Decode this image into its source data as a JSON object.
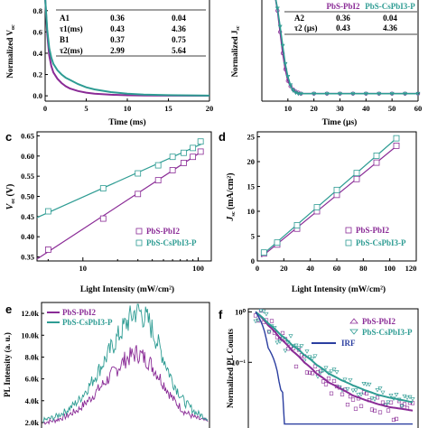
{
  "colors": {
    "pbi": "#8a2b96",
    "cspbi": "#2e9c93",
    "irf": "#2b3ea0"
  },
  "panels": {
    "a": {
      "xlabel": "Time (ms)",
      "ylabel": "Normalized V",
      "ylabel_sub": "oc",
      "table": {
        "headers": [
          "",
          "",
          ""
        ],
        "rows": [
          [
            "A1",
            "0.36",
            "0.04"
          ],
          [
            "τ1(ms)",
            "0.43",
            "4.36"
          ],
          [
            "B1",
            "0.37",
            "0.75"
          ],
          [
            "τ2(ms)",
            "2.99",
            "5.64"
          ]
        ]
      },
      "xticks": [
        "0",
        "5",
        "10",
        "15",
        "20"
      ],
      "yticks": [
        "0.0",
        "0.2",
        "0.4",
        "0.6",
        "0.8"
      ]
    },
    "b": {
      "xlabel": "Time (μs)",
      "ylabel": "Normalized J",
      "ylabel_sub": "sc",
      "table": {
        "headers": [
          "",
          "PbS-PbI2",
          "PbS-CsPbI3-P"
        ],
        "rows": [
          [
            "A2",
            "0.36",
            "0.04"
          ],
          [
            "τ2 (μs)",
            "0.43",
            "4.36"
          ]
        ]
      },
      "xticks": [
        "10",
        "20",
        "30",
        "40",
        "50",
        "60"
      ]
    },
    "c": {
      "letter": "c",
      "xlabel": "Light Intensity (mW/cm²)",
      "ylabel": "V",
      "ylabel_sub": "oc",
      "ylabel_unit": "(V)",
      "xticks": [
        "10",
        "100"
      ],
      "yticks": [
        "0.35",
        "0.40",
        "0.45",
        "0.50",
        "0.55",
        "0.60",
        "0.65"
      ],
      "legend": [
        "PbS-PbI2",
        "PbS-CsPbI3-P"
      ]
    },
    "d": {
      "letter": "d",
      "xlabel": "Light Intensity (mW/cm²)",
      "ylabel": "J",
      "ylabel_sub": "sc",
      "ylabel_unit": "(mA/cm²)",
      "xticks": [
        "0",
        "20",
        "40",
        "60",
        "80",
        "100",
        "120"
      ],
      "yticks": [
        "0",
        "5",
        "10",
        "15",
        "20",
        "25"
      ],
      "legend": [
        "PbS-PbI2",
        "PbS-CsPbI3-P"
      ]
    },
    "e": {
      "letter": "e",
      "ylabel": "PL Intensity (a. u.)",
      "yticks": [
        "2.0k",
        "4.0k",
        "6.0k",
        "8.0k",
        "10.0k",
        "12.0k"
      ],
      "legend": [
        "PbS-PbI2",
        "PbS-CsPbI3-P"
      ]
    },
    "f": {
      "letter": "f",
      "ylabel": "Normalized PL Counts",
      "yticks": [
        "10⁰",
        "10⁻¹"
      ],
      "legend": [
        "PbS-PbI2",
        "PbS-CsPbI3-P",
        "IRF"
      ]
    }
  },
  "chart_data": [
    {
      "type": "line",
      "panel": "a",
      "xlabel": "Time (ms)",
      "ylabel": "Normalized Voc",
      "xlim": [
        0,
        20
      ],
      "ylim": [
        -0.05,
        0.9
      ],
      "x": [
        0,
        0.25,
        0.5,
        0.75,
        1,
        1.5,
        2,
        2.5,
        3,
        4,
        5,
        6,
        8,
        10,
        12,
        15,
        20
      ],
      "series": [
        {
          "name": "PbS-PbI2",
          "values": [
            1.0,
            0.58,
            0.38,
            0.28,
            0.22,
            0.16,
            0.12,
            0.09,
            0.07,
            0.045,
            0.03,
            0.02,
            0.01,
            0.005,
            0.003,
            0.002,
            0.001
          ]
        },
        {
          "name": "PbS-CsPbI3-P",
          "values": [
            1.0,
            0.62,
            0.45,
            0.36,
            0.3,
            0.24,
            0.2,
            0.17,
            0.15,
            0.11,
            0.08,
            0.06,
            0.035,
            0.02,
            0.012,
            0.006,
            0.002
          ]
        }
      ]
    },
    {
      "type": "line",
      "panel": "b",
      "xlabel": "Time (μs)",
      "ylabel": "Normalized Jsc",
      "xlim": [
        0,
        60
      ],
      "ylim": [
        -0.05,
        0.9
      ],
      "x": [
        5,
        6,
        7,
        8,
        9,
        10,
        11,
        12,
        13,
        14,
        15,
        20,
        25,
        30,
        35,
        40,
        45,
        50,
        55,
        60
      ],
      "series": [
        {
          "name": "PbS-PbI2",
          "values": [
            0.95,
            0.8,
            0.6,
            0.4,
            0.25,
            0.14,
            0.09,
            0.06,
            0.04,
            0.03,
            0.02,
            0.02,
            0.02,
            0.02,
            0.02,
            0.02,
            0.02,
            0.02,
            0.02,
            0.02
          ]
        },
        {
          "name": "PbS-CsPbI3-P",
          "values": [
            0.95,
            0.82,
            0.65,
            0.47,
            0.3,
            0.18,
            0.1,
            0.05,
            0.03,
            0.02,
            0.02,
            0.02,
            0.02,
            0.02,
            0.02,
            0.02,
            0.02,
            0.02,
            0.02,
            0.02
          ]
        }
      ]
    },
    {
      "type": "scatter",
      "panel": "c",
      "xlabel": "Light Intensity (mW/cm²)",
      "ylabel": "Voc (V)",
      "xscale": "log",
      "xlim": [
        4,
        130
      ],
      "ylim": [
        0.34,
        0.66
      ],
      "series": [
        {
          "name": "PbS-PbI2",
          "x": [
            5,
            15,
            30,
            45,
            60,
            75,
            90,
            105
          ],
          "values": [
            0.368,
            0.445,
            0.506,
            0.54,
            0.565,
            0.583,
            0.598,
            0.611
          ]
        },
        {
          "name": "PbS-CsPbI3-P",
          "x": [
            5,
            15,
            30,
            45,
            60,
            75,
            90,
            105
          ],
          "values": [
            0.463,
            0.52,
            0.557,
            0.577,
            0.598,
            0.608,
            0.62,
            0.636
          ]
        }
      ]
    },
    {
      "type": "scatter",
      "panel": "d",
      "xlabel": "Light Intensity (mW/cm²)",
      "ylabel": "Jsc (mA/cm²)",
      "xlim": [
        0,
        120
      ],
      "ylim": [
        0,
        26
      ],
      "series": [
        {
          "name": "PbS-PbI2",
          "x": [
            5,
            15,
            30,
            45,
            60,
            75,
            90,
            105
          ],
          "values": [
            1.5,
            3.3,
            6.5,
            10.0,
            13.3,
            16.5,
            19.8,
            23.2
          ]
        },
        {
          "name": "PbS-CsPbI3-P",
          "x": [
            5,
            15,
            30,
            45,
            60,
            75,
            90,
            105
          ],
          "values": [
            1.7,
            3.7,
            7.2,
            10.8,
            14.3,
            17.7,
            21.2,
            24.7
          ]
        }
      ]
    },
    {
      "type": "line",
      "panel": "e",
      "ylabel": "PL Intensity (a. u.)",
      "ylim": [
        1500,
        13000
      ],
      "series": [
        {
          "name": "PbS-PbI2",
          "values": [
            2000,
            2200,
            2600,
            3200,
            4200,
            5400,
            6600,
            7800,
            8400,
            7600,
            6000,
            4200,
            3000,
            2400,
            2100
          ]
        },
        {
          "name": "PbS-CsPbI3-P",
          "values": [
            2200,
            2500,
            3100,
            4000,
            5500,
            7300,
            9200,
            11000,
            12400,
            11200,
            8600,
            5800,
            3900,
            2900,
            2400
          ]
        }
      ]
    },
    {
      "type": "scatter",
      "panel": "f",
      "ylabel": "Normalized PL Counts",
      "yscale": "log",
      "series": [
        {
          "name": "PbS-PbI2",
          "values": [
            1.0,
            0.55,
            0.3,
            0.17,
            0.1,
            0.06,
            0.04,
            0.03,
            0.022,
            0.018,
            0.015,
            0.013,
            0.012,
            0.011
          ]
        },
        {
          "name": "PbS-CsPbI3-P",
          "values": [
            1.0,
            0.6,
            0.36,
            0.22,
            0.14,
            0.09,
            0.06,
            0.045,
            0.035,
            0.028,
            0.023,
            0.02,
            0.018,
            0.016
          ]
        },
        {
          "name": "IRF",
          "values": [
            1.0,
            0.2,
            0.03,
            0.01,
            0.01,
            0.01,
            0.01,
            0.01,
            0.01,
            0.01,
            0.01,
            0.01,
            0.01,
            0.01
          ]
        }
      ]
    }
  ]
}
